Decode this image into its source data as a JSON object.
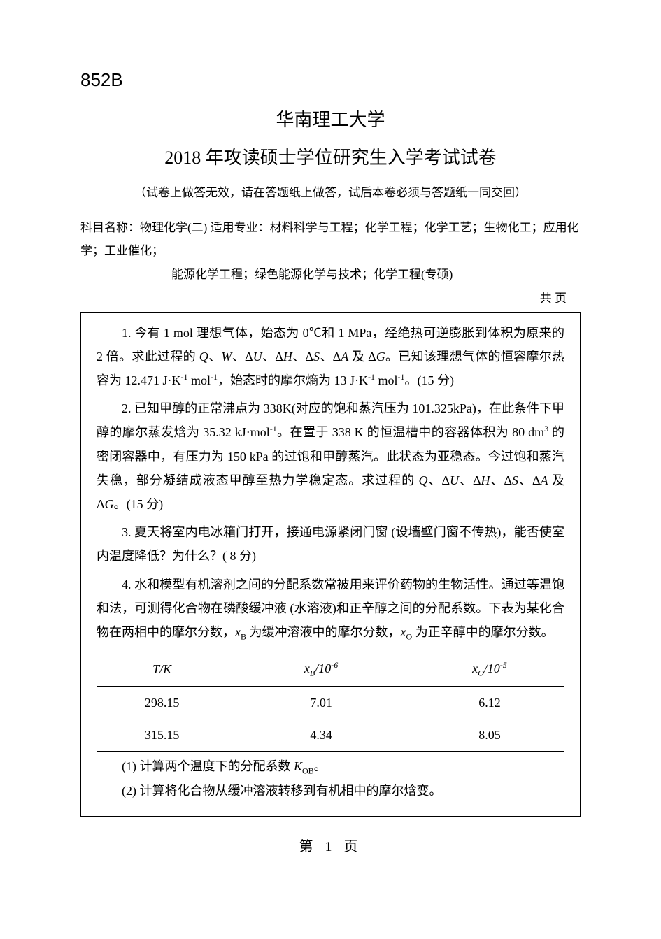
{
  "header": {
    "exam_code": "852B",
    "university": "华南理工大学",
    "title": "2018 年攻读硕士学位研究生入学考试试卷",
    "instruction": "（试卷上做答无效，请在答题纸上做答，试后本卷必须与答题纸一同交回）",
    "subject_line1": "科目名称：物理化学(二) 适用专业：材料科学与工程；化学工程；化学工艺；生物化工；应用化学；工业催化；",
    "subject_line2": "能源化学工程；绿色能源化学与技术；化学工程(专硕)",
    "page_total": "共        页"
  },
  "questions": {
    "q1": "1. 今有 1 mol 理想气体，始态为 0℃和 1 MPa，经绝热可逆膨胀到体积为原来的 2 倍。求此过程的 Q、W、ΔU、ΔH、ΔS、ΔA 及 ΔG。已知该理想气体的恒容摩尔热容为 12.471 J·K⁻¹ mol⁻¹，始态时的摩尔熵为 13 J·K⁻¹ mol⁻¹。(15 分)",
    "q2": "2. 已知甲醇的正常沸点为 338K(对应的饱和蒸汽压为 101.325kPa)，在此条件下甲醇的摩尔蒸发焓为 35.32 kJ·mol⁻¹。在置于 338 K 的恒温槽中的容器体积为 80 dm³ 的密闭容器中，有压力为 150 kPa 的过饱和甲醇蒸汽。此状态为亚稳态。今过饱和蒸汽失稳，部分凝结成液态甲醇至热力学稳定态。求过程的 Q、ΔU、ΔH、ΔS、ΔA 及 ΔG。(15 分)",
    "q3": "3. 夏天将室内电冰箱门打开，接通电源紧闭门窗 (设墙壁门窗不传热)，能否使室内温度降低？为什么？( 8 分)",
    "q4_intro": "4. 水和模型有机溶剂之间的分配系数常被用来评价药物的生物活性。通过等温饱和法，可测得化合物在磷酸缓冲液 (水溶液)和正辛醇之间的分配系数。下表为某化合物在两相中的摩尔分数，xB 为缓冲溶液中的摩尔分数，xO 为正辛醇中的摩尔分数。",
    "q4_sub1": "(1)  计算两个温度下的分配系数 KOB。",
    "q4_sub2": "(2)  计算将化合物从缓冲溶液转移到有机相中的摩尔焓变。"
  },
  "table": {
    "headers": {
      "col1": "T/K",
      "col2_prefix": "x",
      "col2_sub": "B",
      "col2_suffix": "/10",
      "col2_exp": "-6",
      "col3_prefix": "x",
      "col3_sub": "O",
      "col3_suffix": "/10",
      "col3_exp": "-5"
    },
    "rows": [
      {
        "tk": "298.15",
        "xb": "7.01",
        "xo": "6.12"
      },
      {
        "tk": "315.15",
        "xb": "4.34",
        "xo": "8.05"
      }
    ]
  },
  "footer": {
    "page_number": "第 1 页"
  }
}
